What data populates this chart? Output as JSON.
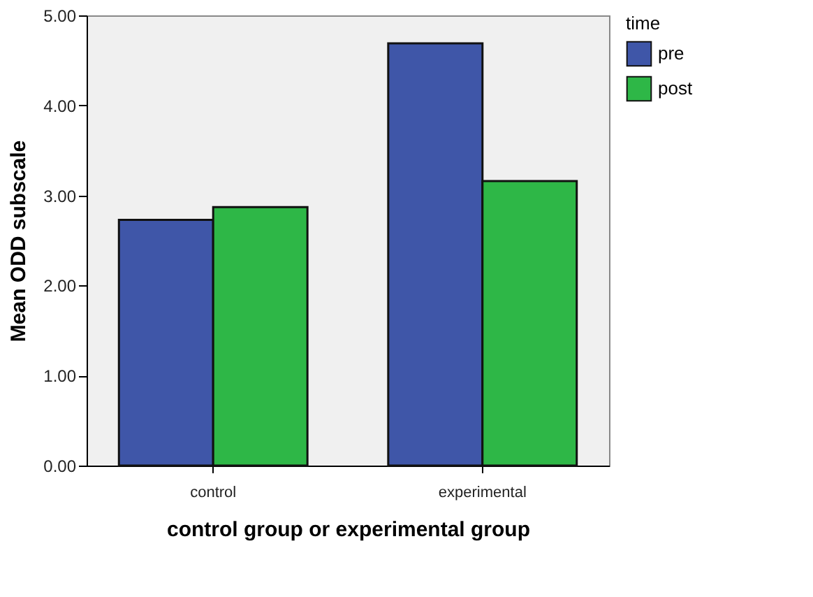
{
  "chart_data": {
    "type": "bar",
    "xlabel": "control group or experimental group",
    "ylabel": "Mean ODD subscale",
    "legend_title": "time",
    "categories": [
      "control",
      "experimental"
    ],
    "series": [
      {
        "name": "pre",
        "color": "#3f56a8",
        "values": [
          2.73,
          4.69
        ]
      },
      {
        "name": "post",
        "color": "#2eb747",
        "values": [
          2.87,
          3.16
        ]
      }
    ],
    "ylim": [
      0,
      5
    ],
    "yticks": [
      {
        "value": 0,
        "label": "0.00"
      },
      {
        "value": 1,
        "label": "1.00"
      },
      {
        "value": 2,
        "label": "2.00"
      },
      {
        "value": 3,
        "label": "3.00"
      },
      {
        "value": 4,
        "label": "4.00"
      },
      {
        "value": 5,
        "label": "5.00"
      }
    ],
    "grid": false,
    "legend": "top right"
  }
}
